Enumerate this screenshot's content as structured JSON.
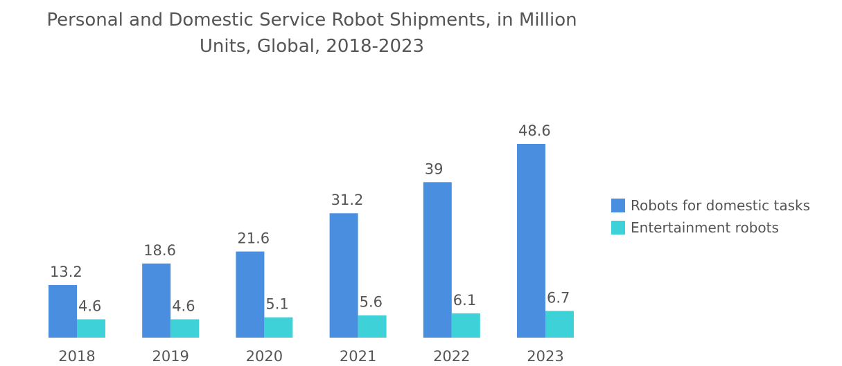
{
  "title_line1": "Personal and Domestic Service Robot Shipments, in Million",
  "title_line2": "Units, Global, 2018-2023",
  "colors": {
    "domestic": "#4a8ee0",
    "entertainment": "#3fd1d8"
  },
  "chart_data": {
    "type": "bar",
    "title": "Personal and Domestic Service Robot Shipments, in Million Units, Global, 2018-2023",
    "categories": [
      "2018",
      "2019",
      "2020",
      "2021",
      "2022",
      "2023"
    ],
    "series": [
      {
        "name": "Robots for domestic tasks",
        "values": [
          13.2,
          18.6,
          21.6,
          31.2,
          39,
          48.6
        ],
        "color": "#4a8ee0"
      },
      {
        "name": "Entertainment robots",
        "values": [
          4.6,
          4.6,
          5.1,
          5.6,
          6.1,
          6.7
        ],
        "color": "#3fd1d8"
      }
    ],
    "value_labels": [
      [
        "13.2",
        "18.6",
        "21.6",
        "31.2",
        "39",
        "48.6"
      ],
      [
        "4.6",
        "4.6",
        "5.1",
        "5.6",
        "6.1",
        "6.7"
      ]
    ],
    "xlabel": "",
    "ylabel": "",
    "ylim": [
      0,
      48.6
    ],
    "grid": false,
    "legend_position": "right"
  }
}
